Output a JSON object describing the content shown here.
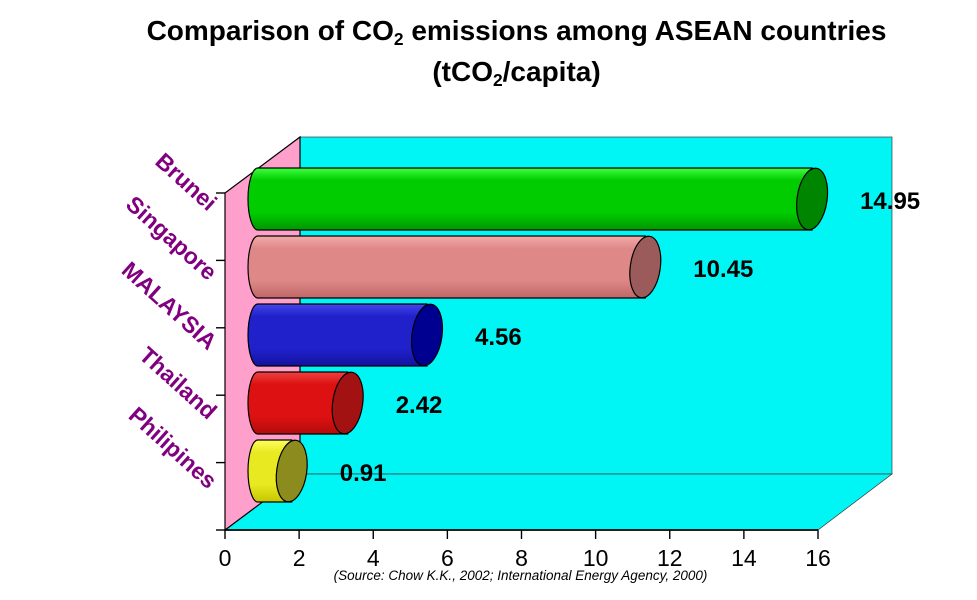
{
  "title": {
    "pre": "Comparison of CO",
    "sub": "2",
    "post": " emissions among ASEAN countries"
  },
  "subtitle": {
    "pre": "(tCO",
    "sub": "2",
    "post": "/capita)"
  },
  "source_note": "(Source: Chow K.K., 2002; International Energy Agency, 2000)",
  "chart_data": {
    "type": "bar",
    "orientation": "horizontal",
    "style": "3d-cylinder",
    "title": "Comparison of CO2 emissions among ASEAN countries (tCO2/capita)",
    "categories": [
      "Brunei",
      "Singapore",
      "MALAYSIA",
      "Thailand",
      "Philipines"
    ],
    "values": [
      14.95,
      10.45,
      4.56,
      2.42,
      0.91
    ],
    "value_labels": [
      "14.95",
      "10.45",
      "4.56",
      "2.42",
      "0.91"
    ],
    "xlabel": "",
    "ylabel": "",
    "xlim": [
      0,
      16
    ],
    "x_ticks": [
      "0",
      "2",
      "4",
      "6",
      "8",
      "10",
      "12",
      "14",
      "16"
    ],
    "grid": false,
    "legend": false,
    "source": "(Source: Chow K.K., 2002; International Energy Agency, 2000)",
    "category_label_color": "#800080",
    "tick_label_color": "#000000",
    "value_label_color": "#000000",
    "walls": {
      "left_wall": "#FF9FCC",
      "back_wall": "#00F5F5",
      "floor": "#00F5F5"
    },
    "bar_colors": [
      {
        "name": "green",
        "light": "#3DFF3D",
        "body": "#00CC00",
        "dark": "#009600",
        "cap": "#008500"
      },
      {
        "name": "salmon",
        "light": "#F4ABAB",
        "body": "#DE8888",
        "dark": "#C06767",
        "cap": "#9C5B5B"
      },
      {
        "name": "blue",
        "light": "#4545E8",
        "body": "#2121CC",
        "dark": "#12129E",
        "cap": "#000090"
      },
      {
        "name": "red",
        "light": "#F04141",
        "body": "#DD1111",
        "dark": "#B30C0C",
        "cap": "#A31212"
      },
      {
        "name": "yellow",
        "light": "#FFFF5E",
        "body": "#E9E922",
        "dark": "#C6C600",
        "cap": "#8C8C1E"
      }
    ]
  }
}
